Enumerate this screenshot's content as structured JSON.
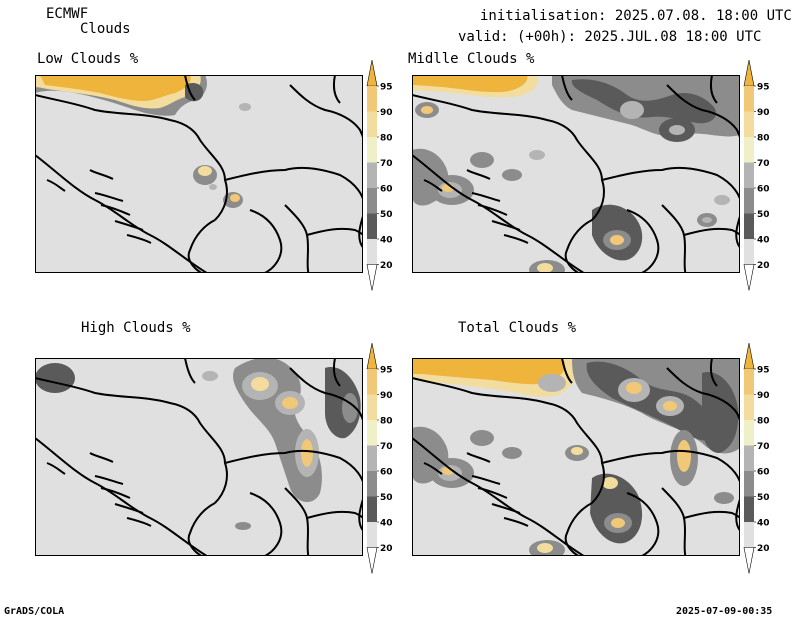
{
  "header": {
    "model": "ECMWF",
    "field": "Clouds",
    "init": "initialisation: 2025.07.08. 18:00 UTC",
    "valid": "valid: (+00h): 2025.JUL.08 18:00 UTC"
  },
  "panels": [
    {
      "title": "Low Clouds %"
    },
    {
      "title": "Midlle Clouds %"
    },
    {
      "title": "High Clouds %"
    },
    {
      "title": "Total Clouds %"
    }
  ],
  "colorbar": {
    "levels": [
      "95",
      "90",
      "80",
      "70",
      "60",
      "50",
      "40",
      "20"
    ],
    "colors": {
      "c20": "#e0e0e0",
      "c40": "#5a5a5a",
      "c50": "#8c8c8c",
      "c60": "#b4b4b4",
      "c70": "#f0f0c8",
      "c80": "#f2dd9e",
      "c90": "#f0c878",
      "c95": "#eeb43c"
    }
  },
  "footer": {
    "left": "GrADS/COLA",
    "right": "2025-07-09-00:35"
  }
}
